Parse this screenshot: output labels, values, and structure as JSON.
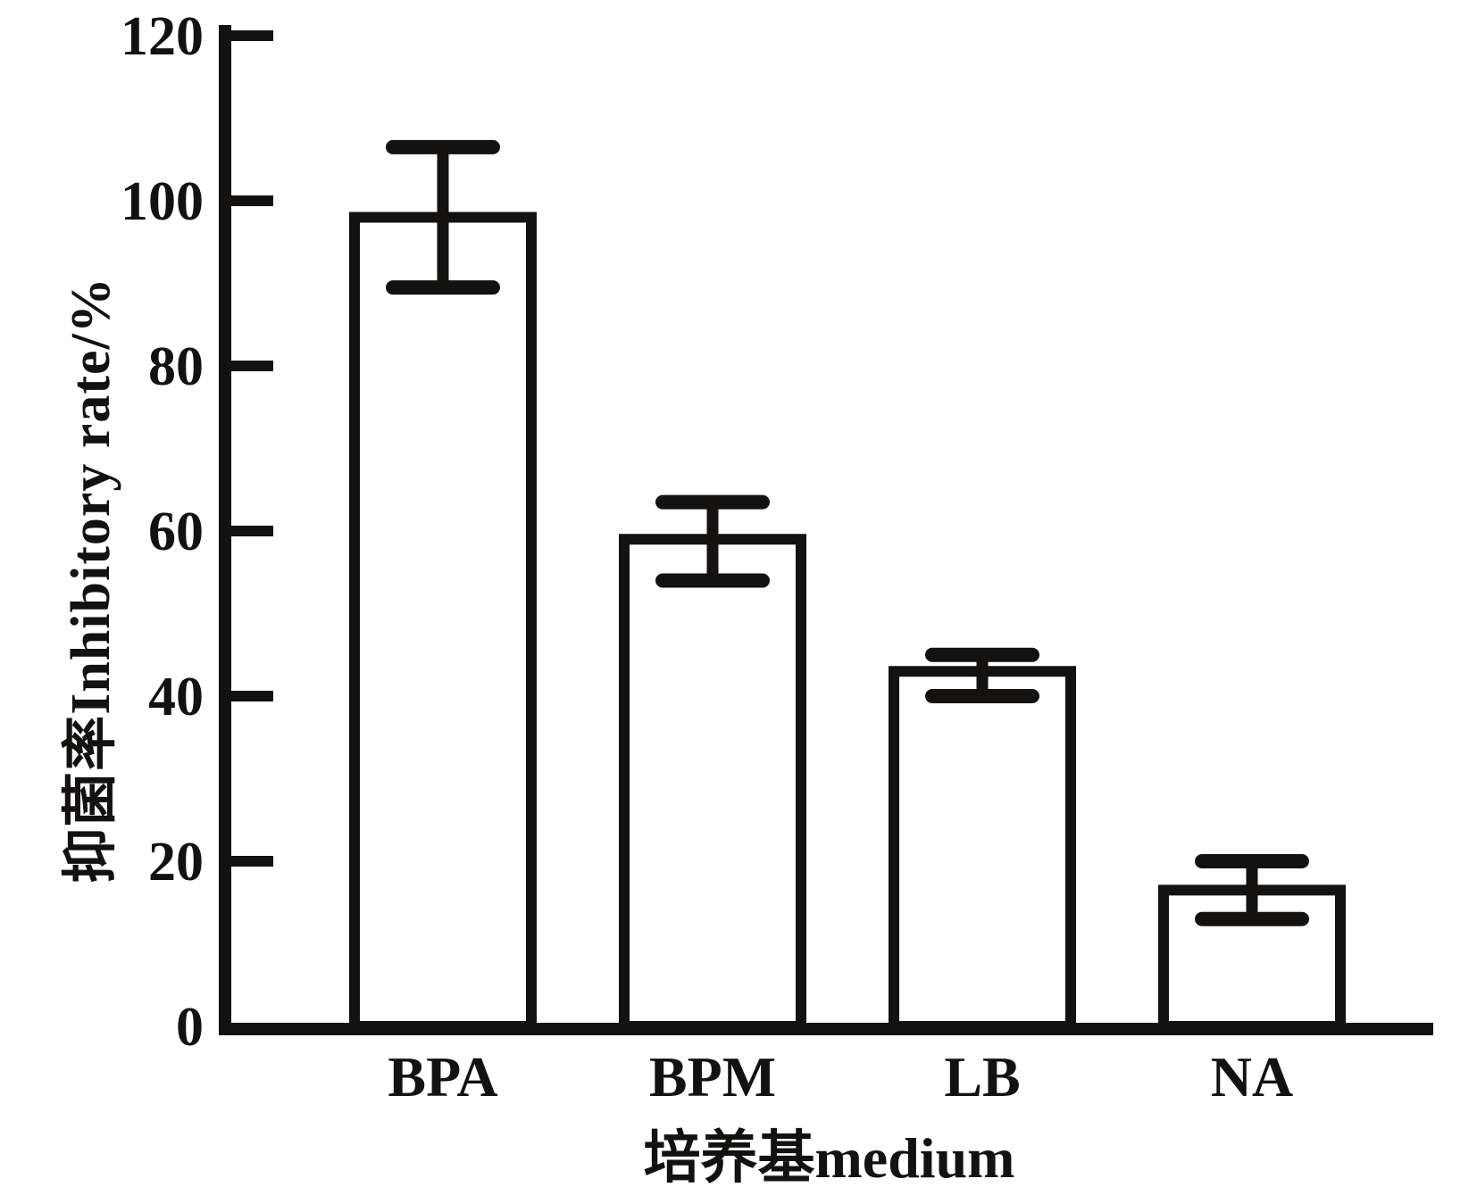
{
  "chart_data": {
    "type": "bar",
    "title": "",
    "categories": [
      "BPA",
      "BPM",
      "LB",
      "NA"
    ],
    "values": [
      98,
      59,
      43,
      16.5
    ],
    "error_upper": [
      106.5,
      63.5,
      45,
      20
    ],
    "error_lower": [
      89.5,
      54,
      40,
      13
    ],
    "xlabel": "培养基medium",
    "ylabel": "抑菌率Inhibitory rate/%",
    "ylim": [
      0,
      120
    ],
    "yticks": [
      0,
      20,
      40,
      60,
      80,
      100,
      120
    ],
    "grid": false,
    "legend": null,
    "bar_fill": "#ffffff",
    "line_color": "#141210"
  }
}
